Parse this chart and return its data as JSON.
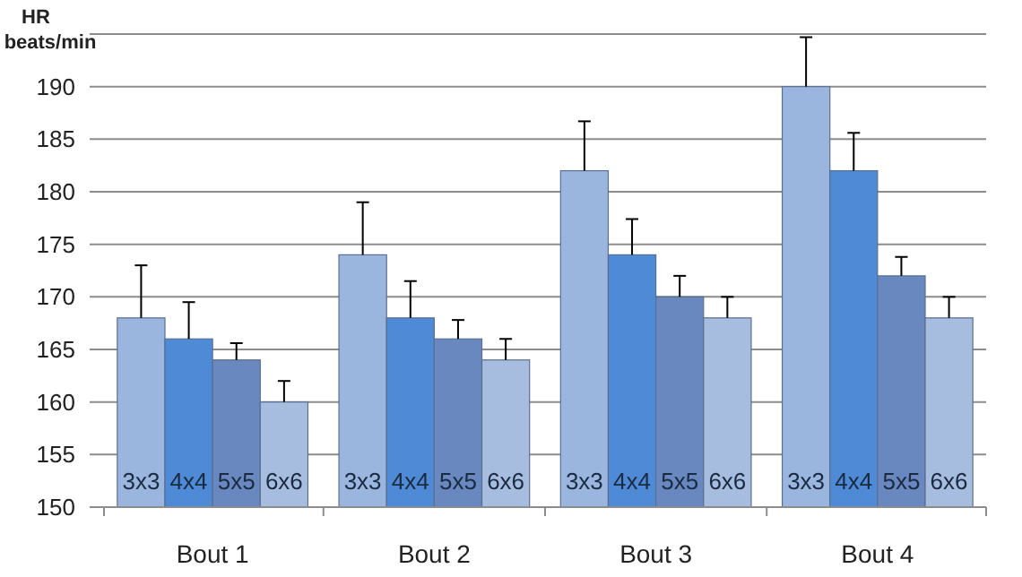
{
  "chart_data": {
    "type": "bar",
    "ylabel": "HR beats/min",
    "categories": [
      "Bout 1",
      "Bout 2",
      "Bout 3",
      "Bout 4"
    ],
    "ylim": [
      150,
      195
    ],
    "yticks": [
      150,
      155,
      160,
      165,
      170,
      175,
      180,
      185,
      190,
      {
        "value": 195,
        "label": null
      }
    ],
    "grid": "y",
    "series": [
      {
        "name": "3x3",
        "color": "#9ab6de",
        "values": [
          168,
          174,
          182,
          190
        ],
        "errors": [
          [
            168,
            173
          ],
          [
            174,
            179
          ],
          [
            182,
            186.7
          ],
          [
            190,
            194.7
          ]
        ]
      },
      {
        "name": "4x4",
        "color": "#4f8ad6",
        "values": [
          166,
          168,
          174,
          182
        ],
        "errors": [
          [
            166,
            169.5
          ],
          [
            168,
            171.5
          ],
          [
            174,
            177.4
          ],
          [
            182,
            185.6
          ]
        ]
      },
      {
        "name": "5x5",
        "color": "#6888bf",
        "values": [
          164,
          166,
          170,
          172
        ],
        "errors": [
          [
            164,
            165.6
          ],
          [
            166,
            167.8
          ],
          [
            170,
            172
          ],
          [
            172,
            173.8
          ]
        ]
      },
      {
        "name": "6x6",
        "color": "#a6bde0",
        "values": [
          160,
          164,
          168,
          168
        ],
        "errors": [
          [
            160,
            162
          ],
          [
            164,
            166
          ],
          [
            168,
            170
          ],
          [
            168,
            170
          ]
        ]
      }
    ]
  }
}
